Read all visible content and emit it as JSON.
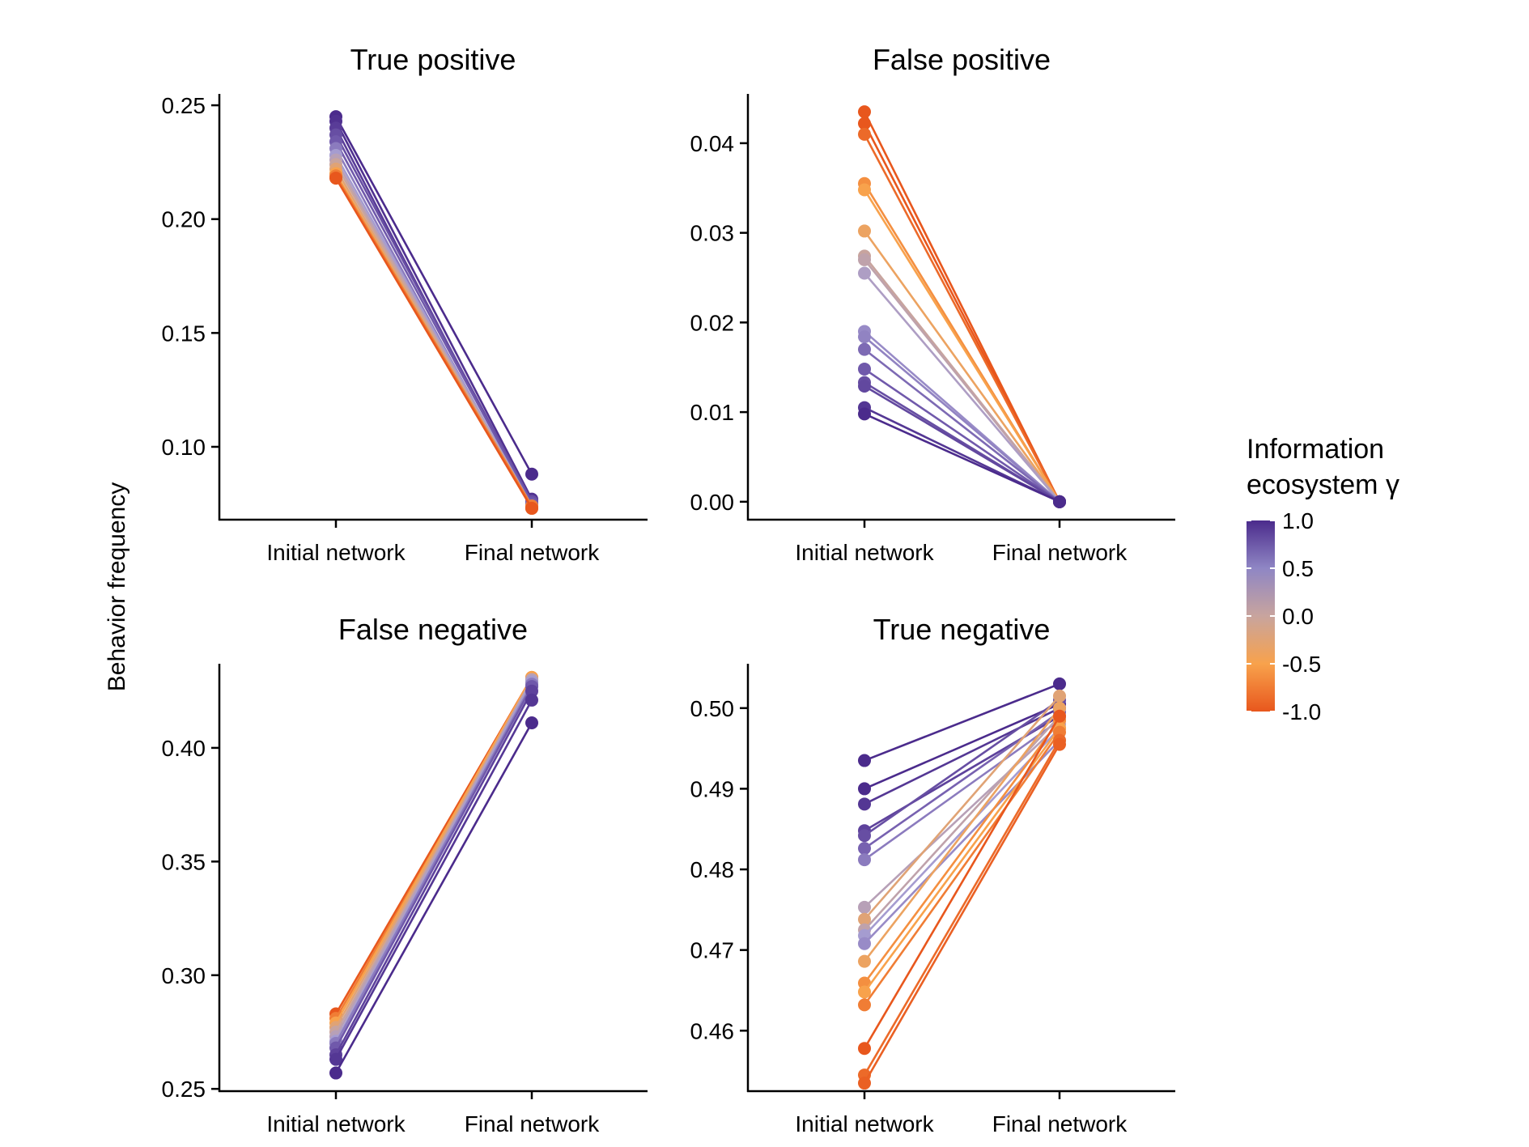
{
  "ylabel": "Behavior frequency",
  "legend": {
    "title_line1": "Information",
    "title_line2": "ecosystem γ",
    "range": [
      -1.0,
      1.0
    ],
    "ticks": [
      "1.0",
      "0.5",
      "0.0",
      "-0.5",
      "-1.0"
    ],
    "tick_values": [
      1.0,
      0.5,
      0.0,
      -0.5,
      -1.0
    ],
    "colors": [
      "#e8571d",
      "#f8a24c",
      "#c8a49e",
      "#a59cd0",
      "#7059ab",
      "#4b2b8c"
    ]
  },
  "chart_data": [
    {
      "type": "line",
      "title": "True positive",
      "categories": [
        "Initial network",
        "Final network"
      ],
      "ylim": [
        0.068,
        0.255
      ],
      "yticks": [
        0.1,
        0.15,
        0.2,
        0.25
      ],
      "ytick_labels": [
        "0.10",
        "0.15",
        "0.20",
        "0.25"
      ],
      "series": [
        {
          "gamma": 1.0,
          "values": [
            0.245,
            0.088
          ]
        },
        {
          "gamma": 0.95,
          "values": [
            0.243,
            0.077
          ]
        },
        {
          "gamma": 0.85,
          "values": [
            0.24,
            0.074
          ]
        },
        {
          "gamma": 0.7,
          "values": [
            0.237,
            0.076
          ]
        },
        {
          "gamma": 0.6,
          "values": [
            0.234,
            0.075
          ]
        },
        {
          "gamma": 0.4,
          "values": [
            0.231,
            0.073
          ]
        },
        {
          "gamma": 0.2,
          "values": [
            0.228,
            0.074
          ]
        },
        {
          "gamma": 0.0,
          "values": [
            0.226,
            0.073
          ]
        },
        {
          "gamma": -0.2,
          "values": [
            0.224,
            0.074
          ]
        },
        {
          "gamma": -0.4,
          "values": [
            0.222,
            0.073
          ]
        },
        {
          "gamma": -0.6,
          "values": [
            0.22,
            0.073
          ]
        },
        {
          "gamma": -0.8,
          "values": [
            0.219,
            0.074
          ]
        },
        {
          "gamma": -1.0,
          "values": [
            0.218,
            0.073
          ]
        }
      ]
    },
    {
      "type": "line",
      "title": "False positive",
      "categories": [
        "Initial network",
        "Final network"
      ],
      "ylim": [
        -0.002,
        0.0455
      ],
      "yticks": [
        0.0,
        0.01,
        0.02,
        0.03,
        0.04
      ],
      "ytick_labels": [
        "0.00",
        "0.01",
        "0.02",
        "0.03",
        "0.04"
      ],
      "series": [
        {
          "gamma": -1.0,
          "values": [
            0.0435,
            0.0
          ]
        },
        {
          "gamma": -1.0,
          "values": [
            0.0422,
            0.0
          ]
        },
        {
          "gamma": -0.9,
          "values": [
            0.041,
            0.0
          ]
        },
        {
          "gamma": -0.7,
          "values": [
            0.0355,
            0.0
          ]
        },
        {
          "gamma": -0.6,
          "values": [
            0.0348,
            0.0
          ]
        },
        {
          "gamma": -0.5,
          "values": [
            0.0302,
            0.0
          ]
        },
        {
          "gamma": -0.2,
          "values": [
            0.0274,
            0.0
          ]
        },
        {
          "gamma": -0.1,
          "values": [
            0.027,
            0.0
          ]
        },
        {
          "gamma": 0.1,
          "values": [
            0.0255,
            0.0
          ]
        },
        {
          "gamma": 0.3,
          "values": [
            0.019,
            0.0
          ]
        },
        {
          "gamma": 0.35,
          "values": [
            0.0184,
            0.0
          ]
        },
        {
          "gamma": 0.5,
          "values": [
            0.017,
            0.0
          ]
        },
        {
          "gamma": 0.6,
          "values": [
            0.0148,
            0.0
          ]
        },
        {
          "gamma": 0.7,
          "values": [
            0.0133,
            0.0
          ]
        },
        {
          "gamma": 0.75,
          "values": [
            0.0129,
            0.0
          ]
        },
        {
          "gamma": 0.9,
          "values": [
            0.0105,
            0.0
          ]
        },
        {
          "gamma": 1.0,
          "values": [
            0.0098,
            0.0
          ]
        }
      ]
    },
    {
      "type": "line",
      "title": "False negative",
      "categories": [
        "Initial network",
        "Final network"
      ],
      "ylim": [
        0.249,
        0.437
      ],
      "yticks": [
        0.25,
        0.3,
        0.35,
        0.4
      ],
      "ytick_labels": [
        "0.25",
        "0.30",
        "0.35",
        "0.40"
      ],
      "series": [
        {
          "gamma": -1.0,
          "values": [
            0.283,
            0.431
          ]
        },
        {
          "gamma": -0.8,
          "values": [
            0.281,
            0.43
          ]
        },
        {
          "gamma": -0.6,
          "values": [
            0.279,
            0.431
          ]
        },
        {
          "gamma": -0.4,
          "values": [
            0.277,
            0.43
          ]
        },
        {
          "gamma": -0.2,
          "values": [
            0.275,
            0.429
          ]
        },
        {
          "gamma": 0.0,
          "values": [
            0.273,
            0.43
          ]
        },
        {
          "gamma": 0.2,
          "values": [
            0.271,
            0.429
          ]
        },
        {
          "gamma": 0.4,
          "values": [
            0.27,
            0.428
          ]
        },
        {
          "gamma": 0.6,
          "values": [
            0.268,
            0.427
          ]
        },
        {
          "gamma": 0.8,
          "values": [
            0.265,
            0.425
          ]
        },
        {
          "gamma": 0.9,
          "values": [
            0.263,
            0.421
          ]
        },
        {
          "gamma": 1.0,
          "values": [
            0.257,
            0.411
          ]
        }
      ]
    },
    {
      "type": "line",
      "title": "True negative",
      "categories": [
        "Initial network",
        "Final network"
      ],
      "ylim": [
        0.4525,
        0.5055
      ],
      "yticks": [
        0.46,
        0.47,
        0.48,
        0.49,
        0.5
      ],
      "ytick_labels": [
        "0.46",
        "0.47",
        "0.48",
        "0.49",
        "0.50"
      ],
      "series": [
        {
          "gamma": 1.0,
          "values": [
            0.4935,
            0.503
          ]
        },
        {
          "gamma": 1.0,
          "values": [
            0.49,
            0.5005
          ]
        },
        {
          "gamma": 0.9,
          "values": [
            0.4881,
            0.5
          ]
        },
        {
          "gamma": 0.8,
          "values": [
            0.4848,
            0.499
          ]
        },
        {
          "gamma": 0.7,
          "values": [
            0.4842,
            0.501
          ]
        },
        {
          "gamma": 0.55,
          "values": [
            0.4826,
            0.4995
          ]
        },
        {
          "gamma": 0.4,
          "values": [
            0.4812,
            0.4985
          ]
        },
        {
          "gamma": 0.0,
          "values": [
            0.4753,
            0.498
          ]
        },
        {
          "gamma": -0.4,
          "values": [
            0.4738,
            0.5015
          ]
        },
        {
          "gamma": -0.1,
          "values": [
            0.4725,
            0.499
          ]
        },
        {
          "gamma": 0.2,
          "values": [
            0.4718,
            0.4975
          ]
        },
        {
          "gamma": 0.3,
          "values": [
            0.4708,
            0.496
          ]
        },
        {
          "gamma": -0.5,
          "values": [
            0.4686,
            0.5
          ]
        },
        {
          "gamma": -0.7,
          "values": [
            0.4659,
            0.4985
          ]
        },
        {
          "gamma": -0.6,
          "values": [
            0.4648,
            0.4975
          ]
        },
        {
          "gamma": -0.8,
          "values": [
            0.4632,
            0.497
          ]
        },
        {
          "gamma": -1.0,
          "values": [
            0.4578,
            0.499
          ]
        },
        {
          "gamma": -0.9,
          "values": [
            0.4545,
            0.496
          ]
        },
        {
          "gamma": -0.95,
          "values": [
            0.4535,
            0.4955
          ]
        }
      ]
    }
  ]
}
